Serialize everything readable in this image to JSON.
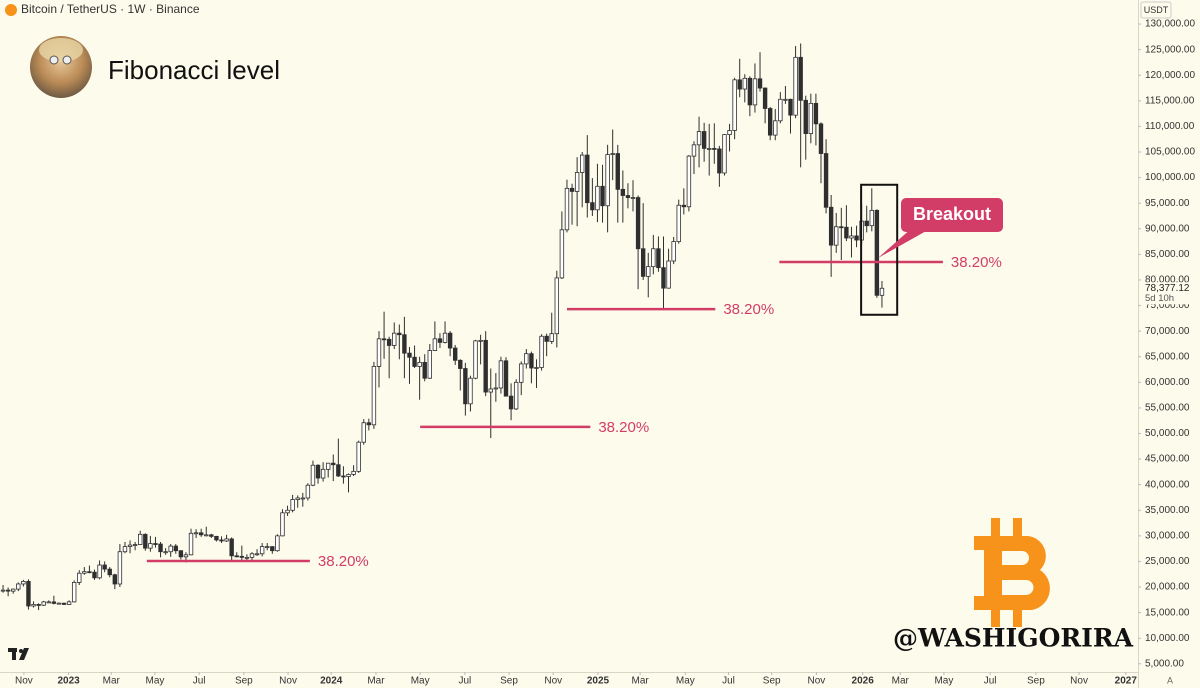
{
  "header": "Bitcoin / TetherUS · 1W · Binance",
  "currency": "USDT",
  "auto_scale_button": "A",
  "watermark": "@WASHIGORIRA",
  "chart_data": {
    "type": "candlestick",
    "title": "Fibonacci level",
    "up_color": "#ffffff",
    "down_color": "#2f2f2f",
    "outline_color": "#2f2f2f",
    "grid": false,
    "xlim": [
      -0.6,
      223.4
    ],
    "ylim": [
      3400,
      134700
    ],
    "yticks": [
      {
        "value": 130000,
        "label": "130,000.00"
      },
      {
        "value": 125000,
        "label": "125,000.00"
      },
      {
        "value": 120000,
        "label": "120,000.00"
      },
      {
        "value": 115000,
        "label": "115,000.00"
      },
      {
        "value": 110000,
        "label": "110,000.00"
      },
      {
        "value": 105000,
        "label": "105,000.00"
      },
      {
        "value": 100000,
        "label": "100,000.00"
      },
      {
        "value": 95000,
        "label": "95,000.00"
      },
      {
        "value": 90000,
        "label": "90,000.00"
      },
      {
        "value": 85000,
        "label": "85,000.00"
      },
      {
        "value": 80000,
        "label": "80,000.00"
      },
      {
        "value": 75000,
        "label": "75,000.00"
      },
      {
        "value": 70000,
        "label": "70,000.00"
      },
      {
        "value": 65000,
        "label": "65,000.00"
      },
      {
        "value": 60000,
        "label": "60,000.00"
      },
      {
        "value": 55000,
        "label": "55,000.00"
      },
      {
        "value": 50000,
        "label": "50,000.00"
      },
      {
        "value": 45000,
        "label": "45,000.00"
      },
      {
        "value": 40000,
        "label": "40,000.00"
      },
      {
        "value": 35000,
        "label": "35,000.00"
      },
      {
        "value": 30000,
        "label": "30,000.00"
      },
      {
        "value": 25000,
        "label": "25,000.00"
      },
      {
        "value": 20000,
        "label": "20,000.00"
      },
      {
        "value": 15000,
        "label": "15,000.00"
      },
      {
        "value": 10000,
        "label": "10,000.00"
      },
      {
        "value": 5000,
        "label": "5,000.00"
      }
    ],
    "xticks": [
      {
        "value": 4.1,
        "label": "Nov"
      },
      {
        "value": 12.9,
        "label": "2023"
      },
      {
        "value": 21.3,
        "label": "Mar"
      },
      {
        "value": 29.9,
        "label": "May"
      },
      {
        "value": 38.6,
        "label": "Jul"
      },
      {
        "value": 47.4,
        "label": "Sep"
      },
      {
        "value": 56.1,
        "label": "Nov"
      },
      {
        "value": 64.6,
        "label": "2024"
      },
      {
        "value": 73.4,
        "label": "Mar"
      },
      {
        "value": 82.1,
        "label": "May"
      },
      {
        "value": 90.9,
        "label": "Jul"
      },
      {
        "value": 99.6,
        "label": "Sep"
      },
      {
        "value": 108.3,
        "label": "Nov"
      },
      {
        "value": 117.1,
        "label": "2025"
      },
      {
        "value": 125.4,
        "label": "Mar"
      },
      {
        "value": 134.3,
        "label": "May"
      },
      {
        "value": 142.8,
        "label": "Jul"
      },
      {
        "value": 151.3,
        "label": "Sep"
      },
      {
        "value": 160.1,
        "label": "Nov"
      },
      {
        "value": 169.2,
        "label": "2026"
      },
      {
        "value": 176.6,
        "label": "Mar"
      },
      {
        "value": 185.2,
        "label": "May"
      },
      {
        "value": 194.3,
        "label": "Jul"
      },
      {
        "value": 203.3,
        "label": "Sep"
      },
      {
        "value": 211.8,
        "label": "Nov"
      },
      {
        "value": 221.0,
        "label": "2027"
      }
    ],
    "ohlc": [
      [
        19300,
        20400,
        18900,
        19400
      ],
      [
        19400,
        19900,
        18200,
        19200
      ],
      [
        19200,
        19700,
        18700,
        19600
      ],
      [
        19600,
        20900,
        19200,
        20600
      ],
      [
        20600,
        21400,
        20100,
        21100
      ],
      [
        21100,
        21500,
        15600,
        16300
      ],
      [
        16300,
        17200,
        16000,
        16600
      ],
      [
        16600,
        16800,
        15500,
        16450
      ],
      [
        16450,
        17300,
        16300,
        17100
      ],
      [
        17100,
        17400,
        16900,
        17100
      ],
      [
        17100,
        18300,
        16600,
        16800
      ],
      [
        16800,
        17000,
        16600,
        16850
      ],
      [
        16850,
        16900,
        16500,
        16600
      ],
      [
        16600,
        17400,
        16500,
        17100
      ],
      [
        17100,
        21300,
        17000,
        20900
      ],
      [
        20900,
        23300,
        20400,
        22700
      ],
      [
        22700,
        23900,
        22400,
        23000
      ],
      [
        23000,
        24200,
        22700,
        22900
      ],
      [
        22900,
        23400,
        21400,
        21800
      ],
      [
        21800,
        25200,
        21500,
        24300
      ],
      [
        24300,
        25000,
        22900,
        23500
      ],
      [
        23500,
        23900,
        21900,
        22400
      ],
      [
        22400,
        22600,
        19600,
        20600
      ],
      [
        20600,
        28400,
        20000,
        26900
      ],
      [
        26900,
        28800,
        26600,
        27900
      ],
      [
        27900,
        29100,
        26600,
        28200
      ],
      [
        28200,
        28800,
        27200,
        28300
      ],
      [
        28300,
        31000,
        28200,
        30300
      ],
      [
        30300,
        30500,
        27100,
        27600
      ],
      [
        27600,
        30000,
        26900,
        28500
      ],
      [
        28500,
        29800,
        27700,
        28400
      ],
      [
        28400,
        28800,
        25800,
        26900
      ],
      [
        26900,
        27600,
        26300,
        26900
      ],
      [
        26900,
        28400,
        25900,
        28000
      ],
      [
        28000,
        28400,
        26500,
        27100
      ],
      [
        27100,
        27200,
        25400,
        25900
      ],
      [
        25900,
        26800,
        24800,
        26300
      ],
      [
        26300,
        31400,
        26200,
        30500
      ],
      [
        30500,
        31300,
        29600,
        30600
      ],
      [
        30600,
        31400,
        29800,
        30200
      ],
      [
        30200,
        31800,
        29900,
        30200
      ],
      [
        30200,
        30400,
        29600,
        29900
      ],
      [
        29900,
        30000,
        28900,
        29200
      ],
      [
        29200,
        29900,
        28600,
        29000
      ],
      [
        29000,
        30200,
        28800,
        29400
      ],
      [
        29400,
        29700,
        25200,
        26100
      ],
      [
        26100,
        26800,
        25800,
        26000
      ],
      [
        26000,
        28100,
        25300,
        25800
      ],
      [
        25800,
        26400,
        24900,
        25800
      ],
      [
        25800,
        26800,
        25100,
        26500
      ],
      [
        26500,
        27400,
        26100,
        26500
      ],
      [
        26500,
        28600,
        26000,
        27900
      ],
      [
        27900,
        28600,
        27200,
        27900
      ],
      [
        27900,
        28000,
        26500,
        27100
      ],
      [
        27100,
        30300,
        26900,
        30000
      ],
      [
        30000,
        35200,
        29900,
        34500
      ],
      [
        34500,
        35900,
        33900,
        35000
      ],
      [
        35000,
        38000,
        34600,
        37100
      ],
      [
        37100,
        37900,
        35500,
        37400
      ],
      [
        37400,
        38400,
        35700,
        37400
      ],
      [
        37400,
        40300,
        36900,
        39900
      ],
      [
        39900,
        44700,
        39700,
        43800
      ],
      [
        43800,
        44000,
        40200,
        41300
      ],
      [
        41300,
        44400,
        40600,
        43000
      ],
      [
        43000,
        44000,
        41400,
        44200
      ],
      [
        44200,
        45900,
        40700,
        43900
      ],
      [
        43900,
        49000,
        41500,
        41700
      ],
      [
        41700,
        43600,
        40200,
        41600
      ],
      [
        41600,
        42200,
        38500,
        42000
      ],
      [
        42000,
        43800,
        41700,
        42600
      ],
      [
        42600,
        48600,
        42300,
        48300
      ],
      [
        48300,
        52800,
        47800,
        52100
      ],
      [
        52100,
        52900,
        50600,
        51700
      ],
      [
        51700,
        64000,
        50900,
        63100
      ],
      [
        63100,
        70000,
        59000,
        68500
      ],
      [
        68500,
        73800,
        64600,
        68400
      ],
      [
        68400,
        68900,
        60800,
        67200
      ],
      [
        67200,
        71700,
        66500,
        69600
      ],
      [
        69600,
        71300,
        64500,
        69300
      ],
      [
        69300,
        72800,
        60800,
        65700
      ],
      [
        65700,
        66900,
        59700,
        64900
      ],
      [
        64900,
        67200,
        62800,
        63100
      ],
      [
        63100,
        65000,
        56600,
        63900
      ],
      [
        63900,
        65500,
        60200,
        60800
      ],
      [
        60800,
        67500,
        60700,
        66200
      ],
      [
        66200,
        71900,
        66100,
        68500
      ],
      [
        68500,
        69600,
        66700,
        67800
      ],
      [
        67800,
        71900,
        67600,
        69600
      ],
      [
        69600,
        70000,
        65100,
        66700
      ],
      [
        66700,
        67300,
        63400,
        64300
      ],
      [
        64300,
        64500,
        58400,
        62700
      ],
      [
        62700,
        63800,
        53500,
        55800
      ],
      [
        55800,
        61300,
        54300,
        60800
      ],
      [
        60800,
        68300,
        60600,
        68100
      ],
      [
        68100,
        69300,
        63500,
        68200
      ],
      [
        68200,
        70000,
        57300,
        58100
      ],
      [
        58100,
        62700,
        49100,
        58700
      ],
      [
        58700,
        61800,
        56200,
        58900
      ],
      [
        58900,
        65000,
        57800,
        64200
      ],
      [
        64200,
        64900,
        57300,
        57300
      ],
      [
        57300,
        59800,
        52600,
        54800
      ],
      [
        54800,
        60600,
        54600,
        60000
      ],
      [
        60000,
        64100,
        57500,
        63600
      ],
      [
        63600,
        66500,
        62700,
        65600
      ],
      [
        65600,
        66000,
        59800,
        62800
      ],
      [
        62800,
        64500,
        58900,
        62900
      ],
      [
        62900,
        69400,
        62300,
        69000
      ],
      [
        69000,
        69500,
        65100,
        68000
      ],
      [
        68000,
        73600,
        67500,
        69500
      ],
      [
        69500,
        81800,
        66800,
        80400
      ],
      [
        80400,
        93400,
        80200,
        89800
      ],
      [
        89800,
        99600,
        89300,
        97900
      ],
      [
        97900,
        98800,
        90800,
        97300
      ],
      [
        97300,
        104000,
        90500,
        101000
      ],
      [
        101000,
        105000,
        94200,
        104400
      ],
      [
        104400,
        108300,
        92200,
        95100
      ],
      [
        95100,
        99900,
        92500,
        93700
      ],
      [
        93700,
        102700,
        91300,
        98300
      ],
      [
        98300,
        102500,
        91200,
        94500
      ],
      [
        94500,
        106400,
        89300,
        104500
      ],
      [
        104500,
        109400,
        99500,
        104700
      ],
      [
        104700,
        106400,
        91200,
        97700
      ],
      [
        97700,
        101400,
        91200,
        96500
      ],
      [
        96500,
        98900,
        94000,
        96100
      ],
      [
        96100,
        99500,
        93400,
        96100
      ],
      [
        96100,
        96500,
        78200,
        86100
      ],
      [
        86100,
        95000,
        80000,
        80700
      ],
      [
        80700,
        85300,
        76600,
        82600
      ],
      [
        82600,
        88800,
        81100,
        86100
      ],
      [
        86100,
        88500,
        81600,
        82400
      ],
      [
        82400,
        88500,
        74400,
        78400
      ],
      [
        78400,
        86100,
        78300,
        83700
      ],
      [
        83700,
        88400,
        83100,
        87500
      ],
      [
        87500,
        95700,
        87100,
        94600
      ],
      [
        94600,
        97900,
        92800,
        94300
      ],
      [
        94300,
        104400,
        93400,
        104200
      ],
      [
        104200,
        107100,
        100700,
        106400
      ],
      [
        106400,
        111900,
        102000,
        109000
      ],
      [
        109000,
        110700,
        103100,
        105700
      ],
      [
        105700,
        110500,
        100400,
        105700
      ],
      [
        105700,
        110600,
        102700,
        105600
      ],
      [
        105600,
        106200,
        98200,
        100900
      ],
      [
        100900,
        108500,
        100400,
        108400
      ],
      [
        108400,
        110500,
        105100,
        109200
      ],
      [
        109200,
        119500,
        107500,
        119100
      ],
      [
        119100,
        123200,
        115700,
        117300
      ],
      [
        117300,
        120200,
        114700,
        119400
      ],
      [
        119400,
        119800,
        112000,
        114200
      ],
      [
        114200,
        122300,
        112700,
        119300
      ],
      [
        119300,
        124500,
        116800,
        117500
      ],
      [
        117500,
        117600,
        110600,
        113500
      ],
      [
        113500,
        113800,
        107300,
        108300
      ],
      [
        108300,
        113400,
        107300,
        111100
      ],
      [
        111100,
        116700,
        110600,
        115300
      ],
      [
        115300,
        117900,
        114400,
        115300
      ],
      [
        115300,
        115400,
        108600,
        112200
      ],
      [
        112200,
        125700,
        111600,
        123500
      ],
      [
        123500,
        126200,
        102000,
        115100
      ],
      [
        115100,
        116000,
        103500,
        108600
      ],
      [
        108600,
        116400,
        106700,
        114500
      ],
      [
        114500,
        116400,
        106300,
        110500
      ],
      [
        110500,
        110800,
        98900,
        104700
      ],
      [
        104700,
        107500,
        93000,
        94200
      ],
      [
        94200,
        96600,
        80600,
        86800
      ],
      [
        86800,
        93100,
        85300,
        90400
      ],
      [
        90400,
        94100,
        83900,
        90300
      ],
      [
        90300,
        94600,
        87600,
        88200
      ],
      [
        88200,
        90400,
        84400,
        88600
      ],
      [
        88600,
        90600,
        86400,
        87800
      ],
      [
        87800,
        94800,
        86900,
        91500
      ],
      [
        91500,
        94500,
        89300,
        90600
      ],
      [
        90600,
        97900,
        89500,
        93600
      ],
      [
        93600,
        93800,
        76500,
        77000
      ],
      [
        77000,
        79800,
        74600,
        78377.12
      ]
    ],
    "last_price": {
      "value": 78377.12,
      "label": "78,377.12"
    },
    "countdown": "5d 10h",
    "fib_color": "#d23d68",
    "fib_levels": [
      {
        "price": 25100,
        "x": [
          28.3,
          60.4
        ],
        "label": "38.20%"
      },
      {
        "price": 51300,
        "x": [
          82.1,
          115.6
        ],
        "label": "38.20%"
      },
      {
        "price": 74300,
        "x": [
          111.0,
          140.2
        ],
        "label": "38.20%"
      },
      {
        "price": 83500,
        "x": [
          152.8,
          185.0
        ],
        "label": "38.20%"
      }
    ],
    "highlight_box": {
      "x": [
        168.9,
        176.0
      ],
      "y": [
        73200,
        98600
      ]
    },
    "callout": "Breakout"
  }
}
